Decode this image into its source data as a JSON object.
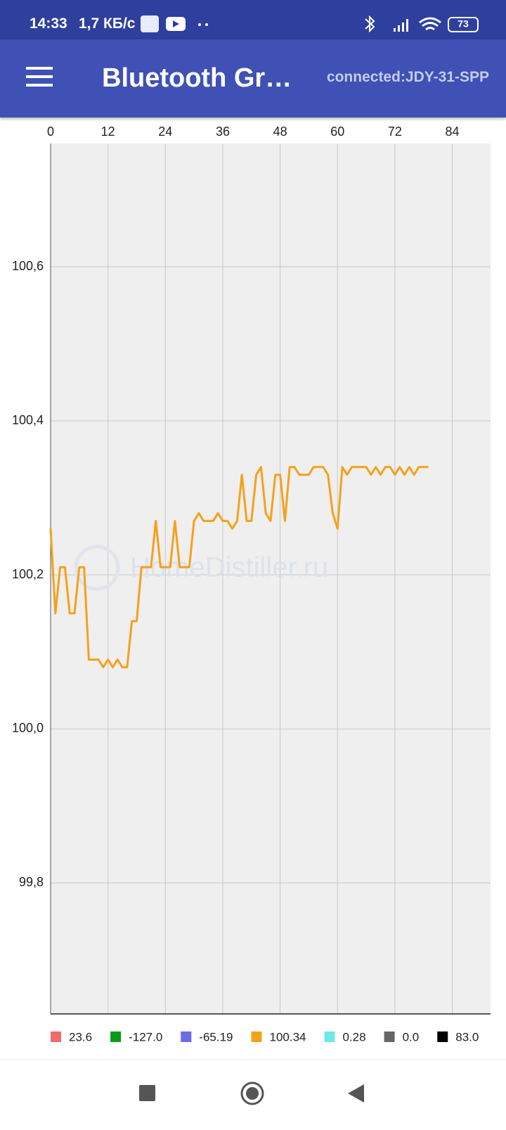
{
  "status_bar": {
    "time": "14:33",
    "speed": "1,7 КБ/с",
    "battery": "73"
  },
  "app_bar": {
    "title": "Bluetooth Gr…",
    "status": "connected:JDY-31-SPP"
  },
  "chart_data": {
    "type": "line",
    "watermark": "HomeDistiller.ru",
    "x": [
      0,
      1,
      2,
      3,
      4,
      5,
      6,
      7,
      8,
      9,
      10,
      11,
      12,
      13,
      14,
      15,
      16,
      17,
      18,
      19,
      20,
      21,
      22,
      23,
      24,
      25,
      26,
      27,
      28,
      29,
      30,
      31,
      32,
      33,
      34,
      35,
      36,
      37,
      38,
      39,
      40,
      41,
      42,
      43,
      44,
      45,
      46,
      47,
      48,
      49,
      50,
      51,
      52,
      53,
      54,
      55,
      56,
      57,
      58,
      59,
      60,
      61,
      62,
      63,
      64,
      65,
      66,
      67,
      68,
      69,
      70,
      71,
      72,
      73,
      74,
      75,
      76,
      77,
      78,
      79
    ],
    "series": [
      {
        "color": "#f5a11c",
        "values": [
          100.26,
          100.15,
          100.21,
          100.21,
          100.15,
          100.15,
          100.21,
          100.21,
          100.09,
          100.09,
          100.09,
          100.08,
          100.09,
          100.08,
          100.09,
          100.08,
          100.08,
          100.14,
          100.14,
          100.21,
          100.21,
          100.21,
          100.27,
          100.21,
          100.21,
          100.21,
          100.27,
          100.21,
          100.21,
          100.21,
          100.27,
          100.28,
          100.27,
          100.27,
          100.27,
          100.28,
          100.27,
          100.27,
          100.26,
          100.27,
          100.33,
          100.27,
          100.27,
          100.33,
          100.34,
          100.28,
          100.27,
          100.33,
          100.33,
          100.27,
          100.34,
          100.34,
          100.33,
          100.33,
          100.33,
          100.34,
          100.34,
          100.34,
          100.33,
          100.28,
          100.26,
          100.34,
          100.33,
          100.34,
          100.34,
          100.34,
          100.34,
          100.33,
          100.34,
          100.33,
          100.34,
          100.34,
          100.33,
          100.34,
          100.33,
          100.34,
          100.33,
          100.34,
          100.34,
          100.34
        ]
      }
    ],
    "xlim": [
      0,
      92
    ],
    "xticks": [
      0,
      12,
      24,
      36,
      48,
      60,
      72,
      84
    ],
    "ylim": [
      99.63,
      100.76
    ],
    "yticks": [
      {
        "value": 99.8,
        "label": "99,8"
      },
      {
        "value": 100.0,
        "label": "100,0"
      },
      {
        "value": 100.2,
        "label": "100,2"
      },
      {
        "value": 100.4,
        "label": "100,4"
      },
      {
        "value": 100.6,
        "label": "100,6"
      }
    ],
    "grid": true,
    "legend": [
      {
        "label": "23.6",
        "color": "#ef6b6b"
      },
      {
        "label": "-127.0",
        "color": "#0b9a17"
      },
      {
        "label": "-65.19",
        "color": "#6b6be8"
      },
      {
        "label": "100.34",
        "color": "#f5a11c"
      },
      {
        "label": "0.28",
        "color": "#6ee9e9"
      },
      {
        "label": "0.0",
        "color": "#666666"
      },
      {
        "label": "83.0",
        "color": "#000000"
      }
    ]
  }
}
